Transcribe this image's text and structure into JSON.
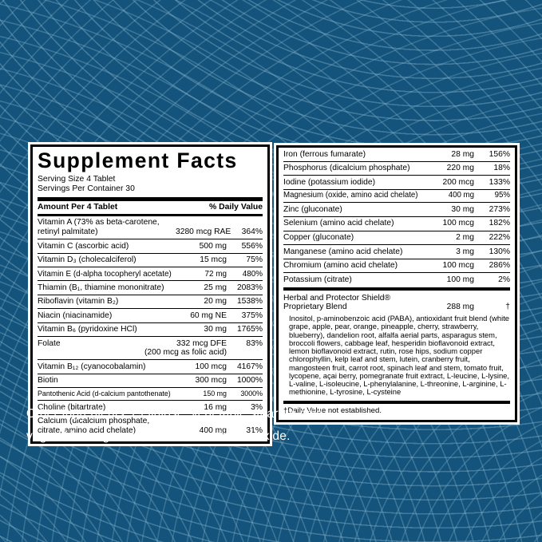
{
  "colors": {
    "background": "#14537b",
    "wave_line": "#87b6cf",
    "panel_background": "#ffffff",
    "panel_text": "#000000",
    "bottom_text": "#ffffff"
  },
  "supplement_facts": {
    "title": "Supplement Facts",
    "serving_size": "Serving Size 4 Tablet",
    "servings_per_container": "Servings Per Container 30",
    "column_header": {
      "amount_label": "Amount Per 4 Tablet",
      "daily_value_label": "% Daily Value"
    },
    "left_rows": [
      {
        "name": "Vitamin A (73% as beta-carotene, retinyl palmitate)",
        "amount": "3280 mcg RAE",
        "daily_value": "364%"
      },
      {
        "name": "Vitamin C (ascorbic acid)",
        "amount": "500 mg",
        "daily_value": "556%"
      },
      {
        "name": "Vitamin D₃ (cholecalciferol)",
        "amount": "15 mcg",
        "daily_value": "75%"
      },
      {
        "name": "Vitamin E (d-alpha tocopheryl acetate)",
        "amount": "72 mg",
        "daily_value": "480%"
      },
      {
        "name": "Thiamin (B₁, thiamine mononitrate)",
        "amount": "25 mg",
        "daily_value": "2083%"
      },
      {
        "name": "Riboflavin (vitamin B₂)",
        "amount": "20 mg",
        "daily_value": "1538%"
      },
      {
        "name": "Niacin (niacinamide)",
        "amount": "60 mg NE",
        "daily_value": "375%"
      },
      {
        "name": "Vitamin B₆ (pyridoxine HCl)",
        "amount": "30 mg",
        "daily_value": "1765%"
      },
      {
        "name": "Folate",
        "amount": "332 mcg DFE",
        "note": "(200 mcg as folic acid)",
        "daily_value": "83%"
      },
      {
        "name": "Vitamin B₁₂ (cyanocobalamin)",
        "amount": "100 mcg",
        "daily_value": "4167%"
      },
      {
        "name": "Biotin",
        "amount": "300 mcg",
        "daily_value": "1000%"
      },
      {
        "name": "Pantothenic Acid (d-calcium pantothenate)",
        "amount": "150 mg",
        "daily_value": "3000%"
      },
      {
        "name": "Choline (bitartrate)",
        "amount": "16 mg",
        "daily_value": "3%"
      },
      {
        "name": "Calcium (dicalcium phosphate, citrate, amino acid chelate)",
        "amount": "400 mg",
        "daily_value": "31%"
      }
    ],
    "right_rows": [
      {
        "name": "Iron (ferrous fumarate)",
        "amount": "28 mg",
        "daily_value": "156%"
      },
      {
        "name": "Phosphorus (dicalcium phosphate)",
        "amount": "220 mg",
        "daily_value": "18%"
      },
      {
        "name": "Iodine (potassium iodide)",
        "amount": "200 mcg",
        "daily_value": "133%"
      },
      {
        "name": "Magnesium (oxide, amino acid chelate)",
        "amount": "400 mg",
        "daily_value": "95%"
      },
      {
        "name": "Zinc (gluconate)",
        "amount": "30 mg",
        "daily_value": "273%"
      },
      {
        "name": "Selenium (amino acid chelate)",
        "amount": "100 mcg",
        "daily_value": "182%"
      },
      {
        "name": "Copper (gluconate)",
        "amount": "2 mg",
        "daily_value": "222%"
      },
      {
        "name": "Manganese (amino acid chelate)",
        "amount": "3 mg",
        "daily_value": "130%"
      },
      {
        "name": "Chromium (amino acid chelate)",
        "amount": "100 mcg",
        "daily_value": "286%"
      },
      {
        "name": "Potassium (citrate)",
        "amount": "100 mg",
        "daily_value": "2%"
      }
    ],
    "proprietary_blend": {
      "name": "Herbal and Protector Shield® Proprietary Blend",
      "amount": "288 mg",
      "daily_value": "†",
      "ingredients": "Inositol, p-aminobenzoic acid (PABA), antioxidant fruit blend (white grape, apple, pear, orange, pineapple, cherry, strawberry, blueberry), dandelion root, alfalfa aerial parts, asparagus stem, broccoli flowers, cabbage leaf, hesperidin bioflavonoid extract, lemon bioflavonoid extract, rutin, rose hips, sodium copper chlorophyllin, kelp leaf and stem, lutein, cranberry fruit, mangosteen fruit, carrot root, spinach leaf and stem, tomato fruit, lycopene, açai berry, pomegranate fruit extract, L-leucine, L-lysine, L-valine, L-isoleucine, L-phenylalanine, L-threonine, L-arginine, L-methionine, L-tyrosine, L-cysteine"
    },
    "footnote": "†Daily Value not established."
  },
  "other_ingredients": "Other Ingredients: Cellulose, vegetable stearate acid, vegetable magnesium stearate, silicon dioxide."
}
